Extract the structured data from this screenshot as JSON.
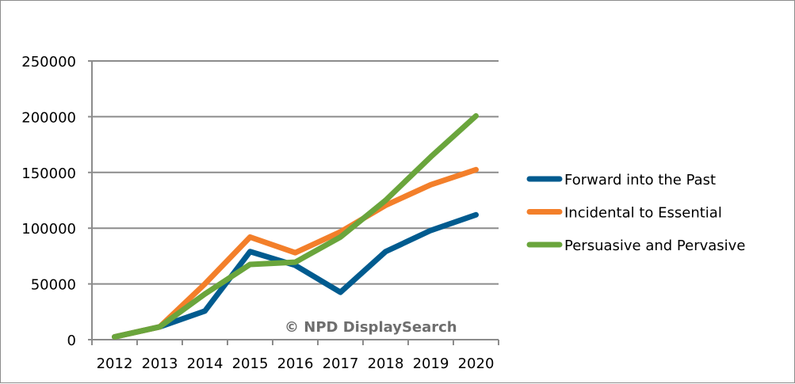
{
  "chart_data": {
    "type": "line",
    "title": "",
    "xlabel": "",
    "ylabel": "",
    "categories": [
      "2012",
      "2013",
      "2014",
      "2015",
      "2016",
      "2017",
      "2018",
      "2019",
      "2020"
    ],
    "ylim": [
      0,
      250000
    ],
    "yticks": [
      "0",
      "50000",
      "100000",
      "150000",
      "200000",
      "250000"
    ],
    "grid": true,
    "legend_position": "right",
    "series": [
      {
        "name": "Forward into the Past",
        "color": "#005b8f",
        "values": [
          2500,
          11500,
          25700,
          79000,
          66700,
          42500,
          79000,
          98000,
          112000
        ]
      },
      {
        "name": "Incidental to Essential",
        "color": "#f37f2a",
        "values": [
          2500,
          11500,
          50000,
          92000,
          78000,
          96700,
          120500,
          139000,
          152500
        ]
      },
      {
        "name": "Persuasive and Pervasive",
        "color": "#6aa53c",
        "values": [
          2500,
          11500,
          41000,
          67500,
          69500,
          92000,
          125000,
          164000,
          200700
        ]
      }
    ],
    "annotation": "©  NPD DisplaySearch"
  }
}
